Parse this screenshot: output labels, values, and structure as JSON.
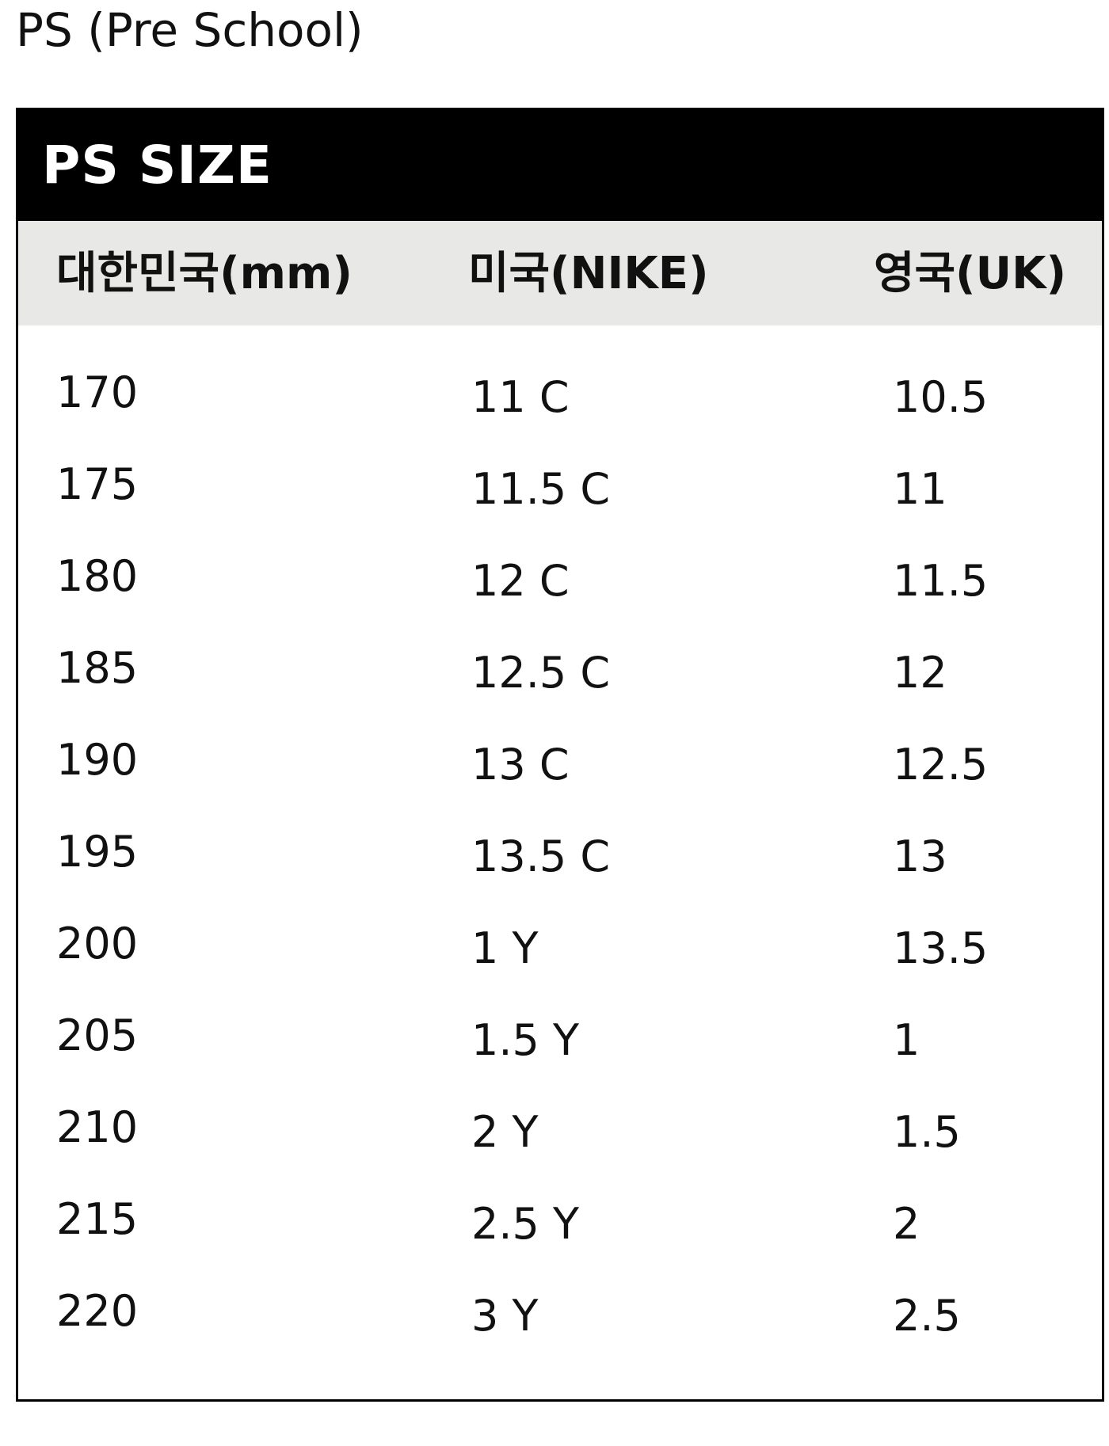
{
  "page": {
    "title": "PS (Pre School)"
  },
  "table": {
    "title": "PS SIZE",
    "columns": [
      "대한민국(mm)",
      "미국(NIKE)",
      "영국(UK)"
    ],
    "rows": [
      [
        "170",
        "11 C",
        "10.5"
      ],
      [
        "175",
        "11.5 C",
        "11"
      ],
      [
        "180",
        "12 C",
        "11.5"
      ],
      [
        "185",
        "12.5 C",
        "12"
      ],
      [
        "190",
        "13 C",
        "12.5"
      ],
      [
        "195",
        "13.5 C",
        "13"
      ],
      [
        "200",
        "1 Y",
        "13.5"
      ],
      [
        "205",
        "1.5 Y",
        "1"
      ],
      [
        "210",
        "2 Y",
        "1.5"
      ],
      [
        "215",
        "2.5 Y",
        "2"
      ],
      [
        "220",
        "3 Y",
        "2.5"
      ]
    ]
  },
  "colors": {
    "header_background": "#000000",
    "header_text": "#ffffff",
    "column_header_background": "#e8e8e6",
    "border": "#000000",
    "text": "#111111"
  }
}
